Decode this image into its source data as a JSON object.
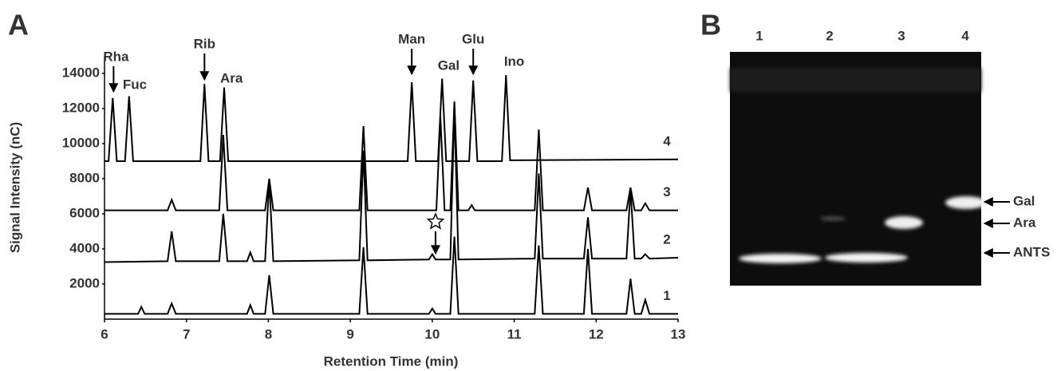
{
  "panel_labels": [
    "A",
    "B"
  ],
  "chart_data": {
    "type": "line",
    "x_label": "Retention Time (min)",
    "y_label": "Signal Intensity (nC)",
    "xlim": [
      6,
      13
    ],
    "xticks": [
      6,
      7,
      8,
      9,
      10,
      11,
      12,
      13
    ],
    "ylim": [
      0,
      15000
    ],
    "yticks": [
      2000,
      4000,
      6000,
      8000,
      10000,
      12000,
      14000
    ],
    "annotations": [
      "Rha",
      "Fuc",
      "Rib",
      "Ara",
      "Man",
      "Gal",
      "Glu",
      "Ino"
    ],
    "series": [
      {
        "name": "4",
        "color": "#000000",
        "x": [
          6.0,
          6.05,
          6.1,
          6.15,
          6.25,
          6.3,
          6.35,
          7.17,
          7.22,
          7.27,
          7.41,
          7.46,
          7.51,
          9.7,
          9.75,
          9.8,
          10.07,
          10.12,
          10.17,
          10.45,
          10.5,
          10.55,
          10.85,
          10.9,
          10.95,
          13.0
        ],
        "values": [
          9000,
          9000,
          12600,
          9000,
          9000,
          12700,
          9000,
          9000,
          13400,
          9000,
          9000,
          13200,
          9000,
          9000,
          13500,
          9000,
          9000,
          13700,
          9000,
          9000,
          13600,
          9000,
          9000,
          13900,
          9050,
          9100
        ]
      },
      {
        "name": "3",
        "color": "#000000",
        "x": [
          6.0,
          6.77,
          6.82,
          6.87,
          7.4,
          7.45,
          7.5,
          7.96,
          8.01,
          8.06,
          9.11,
          9.16,
          9.21,
          10.05,
          10.1,
          10.15,
          10.22,
          10.27,
          10.32,
          10.44,
          10.48,
          10.52,
          11.25,
          11.3,
          11.35,
          11.85,
          11.9,
          11.95,
          12.37,
          12.42,
          12.47,
          12.55,
          12.6,
          12.65,
          13.0
        ],
        "values": [
          6200,
          6200,
          6800,
          6200,
          6200,
          10500,
          6200,
          6200,
          8000,
          6200,
          6200,
          11000,
          6200,
          6200,
          11500,
          6200,
          6200,
          12400,
          6200,
          6200,
          6500,
          6200,
          6200,
          10800,
          6200,
          6200,
          7500,
          6200,
          6200,
          7500,
          6200,
          6200,
          6600,
          6200,
          6200
        ]
      },
      {
        "name": "2",
        "color": "#000000",
        "x": [
          6.0,
          6.77,
          6.82,
          6.87,
          7.4,
          7.45,
          7.5,
          7.74,
          7.78,
          7.82,
          7.96,
          8.01,
          8.06,
          9.11,
          9.16,
          9.21,
          9.96,
          10.0,
          10.04,
          10.22,
          10.27,
          10.32,
          11.25,
          11.3,
          11.35,
          11.85,
          11.9,
          11.95,
          12.37,
          12.42,
          12.47,
          12.55,
          12.6,
          12.65,
          13.0
        ],
        "values": [
          3250,
          3300,
          5000,
          3300,
          3300,
          6000,
          3300,
          3300,
          3800,
          3300,
          3300,
          7900,
          3300,
          3350,
          9600,
          3350,
          3400,
          3700,
          3400,
          3400,
          12000,
          3400,
          3450,
          8300,
          3450,
          3450,
          5800,
          3450,
          3450,
          7400,
          3450,
          3450,
          3700,
          3450,
          3500
        ]
      },
      {
        "name": "1",
        "color": "#000000",
        "x": [
          6.0,
          6.41,
          6.45,
          6.49,
          6.77,
          6.82,
          6.87,
          7.74,
          7.78,
          7.82,
          7.96,
          8.01,
          8.06,
          9.11,
          9.16,
          9.21,
          9.96,
          10.0,
          10.04,
          10.22,
          10.27,
          10.32,
          11.25,
          11.3,
          11.35,
          11.85,
          11.9,
          11.95,
          12.37,
          12.42,
          12.47,
          12.55,
          12.6,
          12.65,
          13.0
        ],
        "values": [
          300,
          300,
          700,
          300,
          300,
          900,
          300,
          300,
          800,
          300,
          300,
          2500,
          300,
          300,
          4100,
          300,
          300,
          600,
          300,
          300,
          4700,
          300,
          300,
          4200,
          300,
          300,
          4000,
          300,
          300,
          2300,
          300,
          300,
          1100,
          300,
          300
        ]
      }
    ]
  },
  "gel": {
    "lanes": [
      "1",
      "2",
      "3",
      "4"
    ],
    "bands": [
      "Gal",
      "Ara",
      "ANTS"
    ]
  }
}
